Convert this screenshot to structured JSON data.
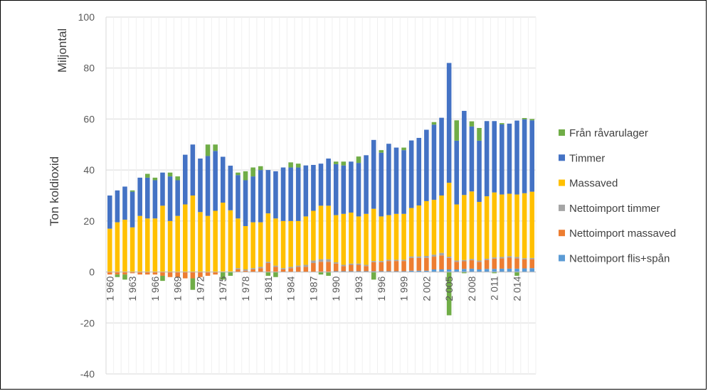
{
  "chart_data": {
    "type": "bar",
    "stacked": true,
    "ylabel": "Ton koldioxid",
    "ylabel_secondary": "Miljontal",
    "ylim": [
      -40,
      100
    ],
    "yticks": [
      -40,
      -20,
      0,
      20,
      40,
      60,
      80,
      100
    ],
    "grid": "horizontal",
    "legend_position": "right",
    "x": [
      1960,
      1961,
      1962,
      1963,
      1964,
      1965,
      1966,
      1967,
      1968,
      1969,
      1970,
      1971,
      1972,
      1973,
      1974,
      1975,
      1976,
      1977,
      1978,
      1979,
      1980,
      1981,
      1982,
      1983,
      1984,
      1985,
      1986,
      1987,
      1988,
      1989,
      1990,
      1991,
      1992,
      1993,
      1994,
      1995,
      1996,
      1997,
      1998,
      1999,
      2000,
      2001,
      2002,
      2003,
      2004,
      2005,
      2006,
      2007,
      2008,
      2009,
      2010,
      2011,
      2012,
      2013,
      2014,
      2015,
      2016
    ],
    "xtick_labels": [
      "1 960",
      "1 963",
      "1 966",
      "1 969",
      "1 972",
      "1 975",
      "1 978",
      "1 981",
      "1 984",
      "1 987",
      "1 990",
      "1 993",
      "1 996",
      "1 999",
      "2 002",
      "2 005",
      "2 008",
      "2 011",
      "2 014"
    ],
    "series": [
      {
        "name": "Nettoimport flis+spån",
        "color": "#5B9BD5",
        "values": [
          0,
          0,
          0,
          0,
          0,
          0,
          0,
          0,
          0,
          0,
          0,
          0,
          0,
          0,
          0,
          0,
          0,
          0,
          0,
          0,
          0,
          0,
          0,
          0,
          0,
          0,
          0,
          0,
          0,
          0,
          0.3,
          0.3,
          0.3,
          0.3,
          0.3,
          0.3,
          0.3,
          0.3,
          0.3,
          0.3,
          0.5,
          0.5,
          0.5,
          1,
          1,
          1,
          1,
          1.2,
          1.3,
          1,
          1.2,
          1.2,
          1.3,
          1.3,
          1.3,
          1.4,
          1.5
        ]
      },
      {
        "name": "Nettoimport massaved",
        "color": "#ED7D31",
        "values": [
          -1,
          -1,
          -1,
          -0.5,
          -1,
          -1,
          -1,
          -1.5,
          -2,
          -2,
          -2.5,
          -2.5,
          -2,
          -1.5,
          -1,
          0,
          0,
          1,
          0.5,
          1,
          1.5,
          3.5,
          2,
          1,
          1.5,
          2,
          2,
          3.5,
          4,
          4,
          3,
          2,
          2.5,
          2.5,
          2,
          3.5,
          3.5,
          4,
          4,
          4,
          5,
          5,
          5,
          5,
          5.5,
          4.5,
          3,
          3,
          3.3,
          3,
          3.5,
          4,
          4,
          4.3,
          4,
          3.5,
          3.5
        ]
      },
      {
        "name": "Nettoimport timmer",
        "color": "#A5A5A5",
        "values": [
          0,
          0,
          0,
          0,
          0,
          0,
          0,
          0,
          0,
          0,
          0,
          0,
          0,
          0,
          0,
          0.2,
          0.2,
          0.5,
          0.5,
          0.5,
          0.5,
          0.5,
          0.5,
          0.5,
          0.5,
          0.5,
          0.8,
          1,
          1,
          1,
          0.5,
          0.5,
          0.5,
          0.5,
          0.5,
          0.5,
          0.5,
          0.5,
          0.5,
          0.5,
          0.6,
          0.6,
          0.8,
          0.8,
          1,
          0.5,
          0.5,
          0.5,
          0.5,
          0.5,
          0.5,
          0.5,
          0.6,
          0.6,
          0.6,
          0.5,
          0.5
        ]
      },
      {
        "name": "Massaved",
        "color": "#FFC000",
        "values": [
          17,
          19.5,
          20.5,
          17.5,
          22,
          21,
          21,
          26,
          20,
          22,
          26.5,
          30,
          23.5,
          22,
          24,
          27,
          24,
          19.5,
          17,
          18,
          17.5,
          19,
          18.5,
          18.5,
          18,
          17.5,
          19,
          19.5,
          21,
          21,
          18.5,
          20,
          20,
          18.5,
          20,
          20.5,
          17.5,
          17.5,
          18,
          18,
          19,
          20,
          21.5,
          21.5,
          22.5,
          29,
          22,
          25.5,
          26.5,
          23,
          24.5,
          25.5,
          24.5,
          24.5,
          24.5,
          25.5,
          26
        ]
      },
      {
        "name": "Timmer",
        "color": "#4472C4",
        "values": [
          13,
          12.5,
          13,
          14,
          15,
          16,
          15,
          13,
          17.5,
          14,
          19.5,
          20,
          21,
          23.5,
          23.5,
          18,
          17.5,
          17,
          18,
          18,
          20.5,
          17,
          18.5,
          21,
          21,
          21,
          20,
          18,
          16.5,
          18.5,
          20,
          19,
          20,
          21,
          23,
          27,
          25,
          28,
          26,
          25,
          26.5,
          26.5,
          28,
          29.5,
          30.5,
          47,
          25,
          33,
          25.5,
          24,
          29.5,
          28,
          27.5,
          27.5,
          29,
          29,
          28
        ]
      },
      {
        "name": "Från råvarulager",
        "color": "#70AD47",
        "values": [
          0,
          -1,
          -2,
          0.5,
          0,
          1.5,
          1,
          -2,
          1.5,
          1.5,
          0,
          -4.5,
          0,
          4.5,
          2.5,
          -3,
          -1.5,
          1,
          3.5,
          3.5,
          1.5,
          -1.5,
          -2,
          0,
          2,
          1.5,
          0,
          0,
          -1,
          -1.5,
          1,
          1.5,
          0,
          2.5,
          0,
          -3,
          1,
          0,
          0,
          1,
          0,
          0,
          0,
          1,
          0,
          -17,
          8,
          -0.5,
          2,
          5,
          0,
          -0.5,
          0.5,
          0,
          -1.5,
          0.5,
          0.5
        ]
      }
    ]
  }
}
